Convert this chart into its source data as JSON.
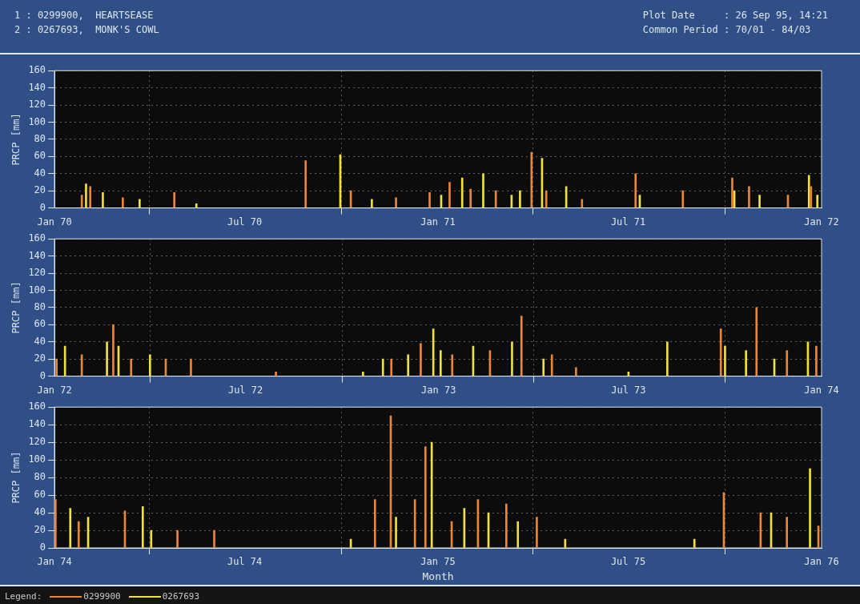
{
  "chart_data": [
    {
      "type": "bar",
      "title": "1 : 0299900,  HEARTSEASE",
      "subtitle": "2 : 0267693,  MONK'S COWL",
      "annotations": [
        "Plot Date     : 26 Sep 95, 14:21",
        "Common Period : 70/01 - 84/03"
      ],
      "ylabel": "PRCP [mm]",
      "grid": true,
      "legend": "bottom",
      "legend_title": "Legend:",
      "xlim": [
        "1970-01-01",
        "1972-01-01"
      ],
      "xticks": [
        {
          "value": "1970-01-01",
          "label": "Jan 70"
        },
        {
          "value": "1970-07-01",
          "label": "Jul 70"
        },
        {
          "value": "1971-01-01",
          "label": "Jan 71"
        },
        {
          "value": "1971-07-01",
          "label": "Jul 71"
        },
        {
          "value": "1972-01-01",
          "label": "Jan 72"
        }
      ],
      "ylim": [
        0,
        160
      ],
      "yticks": [
        0,
        20,
        40,
        60,
        80,
        100,
        120,
        140,
        160
      ],
      "series": [
        {
          "name": "0299900",
          "color": "#e8873a",
          "x": [
            "1970-01-27",
            "1970-02-04",
            "1970-03-07",
            "1970-04-25",
            "1970-08-28",
            "1970-10-10",
            "1970-11-22",
            "1970-12-24",
            "1971-01-12",
            "1971-02-01",
            "1971-02-25",
            "1971-03-31",
            "1971-04-14",
            "1971-05-18",
            "1971-07-08",
            "1971-08-22",
            "1971-10-08",
            "1971-10-24",
            "1971-11-30",
            "1971-12-22"
          ],
          "values": [
            15,
            25,
            12,
            18,
            55,
            20,
            12,
            18,
            30,
            22,
            20,
            65,
            20,
            10,
            40,
            20,
            35,
            25,
            15,
            25
          ]
        },
        {
          "name": "0267693",
          "color": "#f0e040",
          "x": [
            "1970-01-31",
            "1970-02-16",
            "1970-03-23",
            "1970-05-16",
            "1970-09-30",
            "1970-10-30",
            "1971-01-04",
            "1971-01-24",
            "1971-02-13",
            "1971-03-12",
            "1971-03-20",
            "1971-04-10",
            "1971-05-03",
            "1971-07-12",
            "1971-10-10",
            "1971-11-03",
            "1971-12-20",
            "1971-12-28"
          ],
          "values": [
            28,
            18,
            10,
            5,
            62,
            10,
            15,
            35,
            40,
            15,
            20,
            58,
            25,
            15,
            20,
            15,
            38,
            15
          ]
        }
      ]
    },
    {
      "type": "bar",
      "ylabel": "PRCP [mm]",
      "grid": true,
      "xlim": [
        "1972-01-01",
        "1974-01-01"
      ],
      "xticks": [
        {
          "value": "1972-01-01",
          "label": "Jan 72"
        },
        {
          "value": "1972-07-01",
          "label": "Jul 72"
        },
        {
          "value": "1973-01-01",
          "label": "Jan 73"
        },
        {
          "value": "1973-07-01",
          "label": "Jul 73"
        },
        {
          "value": "1974-01-01",
          "label": "Jan 74"
        }
      ],
      "ylim": [
        0,
        160
      ],
      "yticks": [
        0,
        20,
        40,
        60,
        80,
        100,
        120,
        140,
        160
      ],
      "series": [
        {
          "name": "0299900",
          "color": "#e8873a",
          "x": [
            "1972-01-03",
            "1972-01-27",
            "1972-02-26",
            "1972-03-14",
            "1972-04-16",
            "1972-05-10",
            "1972-07-30",
            "1972-11-17",
            "1972-12-15",
            "1973-01-14",
            "1973-02-19",
            "1973-03-21",
            "1973-04-19",
            "1973-05-12",
            "1973-09-27",
            "1973-10-31",
            "1973-11-29",
            "1973-12-27"
          ],
          "values": [
            20,
            25,
            60,
            20,
            20,
            20,
            5,
            20,
            38,
            25,
            30,
            70,
            25,
            10,
            55,
            80,
            30,
            35
          ]
        },
        {
          "name": "0267693",
          "color": "#f0e040",
          "x": [
            "1972-01-11",
            "1972-02-20",
            "1972-03-02",
            "1972-04-01",
            "1972-10-21",
            "1972-11-09",
            "1972-12-03",
            "1972-12-27",
            "1973-01-03",
            "1973-02-03",
            "1973-03-12",
            "1973-04-11",
            "1973-07-01",
            "1973-08-07",
            "1973-10-01",
            "1973-10-21",
            "1973-11-17",
            "1973-12-19"
          ],
          "values": [
            35,
            40,
            35,
            25,
            5,
            20,
            25,
            55,
            30,
            35,
            40,
            20,
            5,
            40,
            35,
            30,
            20,
            40
          ]
        }
      ]
    },
    {
      "type": "bar",
      "ylabel": "PRCP [mm]",
      "xlabel": "Month",
      "grid": true,
      "xlim": [
        "1974-01-01",
        "1976-01-01"
      ],
      "xticks": [
        {
          "value": "1974-01-01",
          "label": "Jan 74"
        },
        {
          "value": "1974-07-01",
          "label": "Jul 74"
        },
        {
          "value": "1975-01-01",
          "label": "Jan 75"
        },
        {
          "value": "1975-07-01",
          "label": "Jul 75"
        },
        {
          "value": "1976-01-01",
          "label": "Jan 76"
        }
      ],
      "ylim": [
        0,
        160
      ],
      "yticks": [
        0,
        20,
        40,
        60,
        80,
        100,
        120,
        140,
        160
      ],
      "series": [
        {
          "name": "0299900",
          "color": "#e8873a",
          "x": [
            "1974-01-02",
            "1974-01-24",
            "1974-03-09",
            "1974-04-28",
            "1974-06-02",
            "1974-11-02",
            "1974-11-17",
            "1974-12-10",
            "1974-12-20",
            "1975-01-14",
            "1975-02-08",
            "1975-03-07",
            "1975-04-05",
            "1975-09-30",
            "1975-11-04",
            "1975-11-29",
            "1975-12-29"
          ],
          "values": [
            55,
            30,
            42,
            20,
            20,
            55,
            150,
            55,
            115,
            30,
            55,
            50,
            35,
            63,
            40,
            35,
            25
          ]
        },
        {
          "name": "0267693",
          "color": "#f0e040",
          "x": [
            "1974-01-16",
            "1974-02-02",
            "1974-03-26",
            "1974-04-03",
            "1974-10-10",
            "1974-11-22",
            "1974-12-26",
            "1975-01-26",
            "1975-02-18",
            "1975-03-18",
            "1975-05-02",
            "1975-09-02",
            "1975-11-14",
            "1975-12-21"
          ],
          "values": [
            45,
            35,
            47,
            20,
            10,
            35,
            120,
            45,
            40,
            30,
            10,
            10,
            40,
            90
          ]
        }
      ]
    }
  ]
}
